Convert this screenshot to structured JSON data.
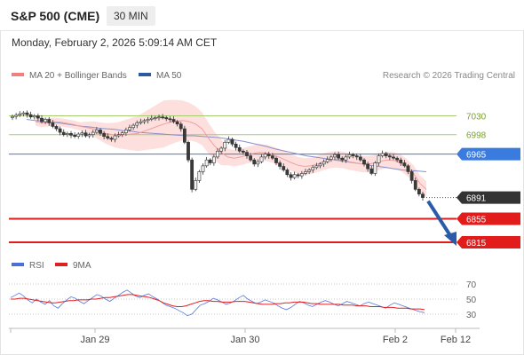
{
  "header": {
    "title": "S&P 500 (CME)",
    "timeframe": "30 MIN"
  },
  "datetime": "Monday, February 2, 2026 5:09:14 AM CET",
  "legend": {
    "bollinger_label": "MA 20 + Bollinger Bands",
    "bollinger_color": "#f08080",
    "ma50_label": "MA 50",
    "ma50_color": "#2c5aa0"
  },
  "research": "Research © 2026 Trading Central",
  "rsi_legend": {
    "rsi_label": "RSI",
    "rsi_color": "#4a6fd8",
    "ma9_label": "9MA",
    "ma9_color": "#e02020"
  },
  "chart_data": {
    "type": "candlestick",
    "x_ticks": [
      "Jan 29",
      "Jan 30",
      "Feb 2",
      "Feb 12"
    ],
    "price_ylim": [
      6800,
      7050
    ],
    "levels": [
      {
        "label": "7030",
        "value": 7030,
        "kind": "resistance",
        "color": "#a8cc70"
      },
      {
        "label": "6998",
        "value": 6998,
        "kind": "resistance",
        "color": "#a8cc70"
      },
      {
        "label": "6965",
        "value": 6965,
        "kind": "pivot",
        "color": "#3a7be0"
      },
      {
        "label": "6891",
        "value": 6891,
        "kind": "last",
        "color": "#333333"
      },
      {
        "label": "6855",
        "value": 6855,
        "kind": "support",
        "color": "#e21b1b"
      },
      {
        "label": "6815",
        "value": 6815,
        "kind": "support",
        "color": "#e21b1b"
      }
    ],
    "close": [
      7029,
      7031,
      7033,
      7035,
      7032,
      7028,
      7030,
      7026,
      7020,
      7024,
      7018,
      7012,
      7008,
      7002,
      6998,
      7000,
      6997,
      6995,
      6999,
      7001,
      6996,
      6998,
      7002,
      7006,
      7000,
      6995,
      6992,
      6990,
      6996,
      6998,
      7001,
      7006,
      7010,
      7014,
      7018,
      7020,
      7022,
      7024,
      7026,
      7027,
      7028,
      7027,
      7025,
      7024,
      7020,
      7016,
      7008,
      6985,
      6955,
      6905,
      6920,
      6935,
      6945,
      6955,
      6950,
      6960,
      6970,
      6975,
      6985,
      6990,
      6982,
      6976,
      6970,
      6968,
      6962,
      6955,
      6948,
      6952,
      6960,
      6965,
      6962,
      6958,
      6950,
      6944,
      6938,
      6930,
      6925,
      6930,
      6928,
      6932,
      6935,
      6938,
      6942,
      6945,
      6948,
      6952,
      6956,
      6960,
      6964,
      6958,
      6955,
      6960,
      6964,
      6962,
      6960,
      6955,
      6948,
      6940,
      6932,
      6950,
      6962,
      6966,
      6962,
      6960,
      6958,
      6955,
      6950,
      6945,
      6935,
      6920,
      6905,
      6897,
      6891
    ],
    "ma50": [
      7024,
      7022,
      7021,
      7019,
      7018,
      7016,
      7014,
      7012,
      7011,
      7009,
      7008,
      7007,
      7005,
      7004,
      7002,
      7001,
      7000,
      6999,
      6998,
      6997,
      6996,
      6996,
      6995,
      6994,
      6993,
      6991,
      6989,
      6987,
      6984,
      6981,
      6978,
      6974,
      6971,
      6968,
      6965,
      6962,
      6960,
      6958,
      6956,
      6954,
      6952,
      6950,
      6948,
      6946,
      6944,
      6942,
      6940,
      6938,
      6937,
      6936,
      6935
    ],
    "ma20": [
      7020,
      7018,
      7019,
      7020,
      7019,
      7017,
      7015,
      7012,
      7010,
      7008,
      7004,
      7000,
      6998,
      6997,
      6998,
      6999,
      7000,
      7004,
      7008,
      7012,
      7016,
      7019,
      7021,
      7022,
      7020,
      7016,
      7008,
      6992,
      6978,
      6968,
      6960,
      6958,
      6960,
      6963,
      6966,
      6968,
      6967,
      6964,
      6960,
      6955,
      6950,
      6946,
      6944,
      6945,
      6948,
      6952,
      6955,
      6956,
      6955,
      6952,
      6950,
      6948,
      6948,
      6950,
      6953,
      6955,
      6954,
      6950,
      6942,
      6932,
      6915,
      6905
    ],
    "rsi": [
      52,
      55,
      58,
      54,
      49,
      45,
      50,
      46,
      43,
      48,
      41,
      38,
      44,
      49,
      53,
      51,
      47,
      44,
      48,
      52,
      56,
      54,
      50,
      47,
      51,
      55,
      59,
      62,
      58,
      54,
      52,
      55,
      57,
      53,
      50,
      46,
      42,
      40,
      38,
      35,
      32,
      28,
      30,
      36,
      42,
      44,
      47,
      51,
      49,
      46,
      43,
      45,
      48,
      52,
      55,
      50,
      47,
      44,
      46,
      49,
      47,
      45,
      41,
      38,
      36,
      39,
      43,
      47,
      45,
      42,
      40,
      43,
      46,
      48,
      46,
      43,
      41,
      44,
      47,
      45,
      43,
      41,
      44,
      46,
      44,
      42,
      40,
      38,
      42,
      45,
      43,
      41,
      39,
      37,
      35,
      33,
      32
    ],
    "rsi_ma9": [
      50,
      50,
      51,
      51,
      50,
      49,
      48,
      47,
      46,
      45,
      45,
      46,
      47,
      48,
      48,
      49,
      49,
      49,
      50,
      50,
      51,
      52,
      52,
      53,
      54,
      55,
      56,
      56,
      55,
      54,
      53,
      52,
      50,
      48,
      45,
      43,
      41,
      40,
      40,
      41,
      43,
      45,
      47,
      48,
      48,
      47,
      47,
      46,
      46,
      46,
      47,
      47,
      47,
      46,
      45,
      44,
      43,
      43,
      43,
      44,
      44,
      45,
      45,
      46,
      46,
      46,
      45,
      44,
      44,
      43,
      43,
      43,
      43,
      43,
      42,
      42,
      42,
      41,
      41,
      41,
      40,
      40,
      40,
      39,
      39,
      39,
      38,
      38,
      38,
      37,
      37,
      37,
      36
    ],
    "rsi_levels": [
      70,
      50,
      30
    ],
    "rsi_ylim": [
      10,
      90
    ],
    "forecast": {
      "from": 6891,
      "to": 6815
    }
  }
}
